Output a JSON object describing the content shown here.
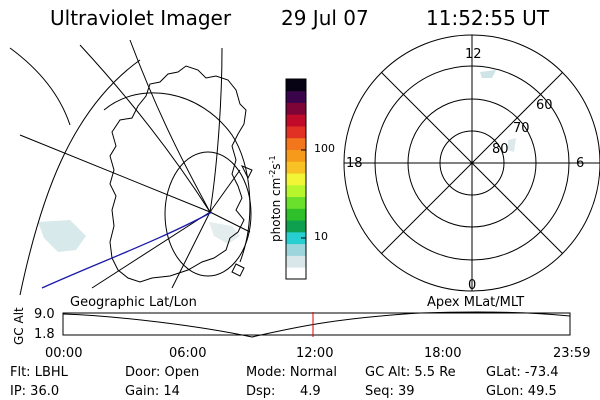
{
  "header": {
    "title": "Ultraviolet Imager",
    "date": "29 Jul 07",
    "time": "11:52:55 UT"
  },
  "colorbar": {
    "unit_label": "photon cm",
    "unit_exp1": "-2",
    "unit_s": "s",
    "unit_exp2": "-1",
    "ticks": [
      "100",
      "10"
    ],
    "colors": [
      "#ffffff",
      "#d9e6ea",
      "#9cd6dc",
      "#27cfd1",
      "#0ea04e",
      "#2fbf2a",
      "#6be02c",
      "#b7f52d",
      "#f2f436",
      "#f8c224",
      "#f59a1b",
      "#f3751c",
      "#e13024",
      "#bf0a29",
      "#7e0438",
      "#39044a",
      "#080314"
    ]
  },
  "polar_plot": {
    "hour_labels": [
      "12",
      "18",
      "6",
      "0"
    ],
    "lat_labels": [
      "60",
      "70",
      "80"
    ]
  },
  "map_labels": {
    "left": "Geographic Lat/Lon",
    "right": "Apex  MLat/MLT"
  },
  "altitude_plot": {
    "axis_title": "GC Alt",
    "y_ticks": [
      "9.0",
      "1.8"
    ],
    "x_ticks": [
      "00:00",
      "06:00",
      "12:00",
      "18:00",
      "23:59"
    ]
  },
  "info": {
    "filter": "Flt: LBHL",
    "door": "Door: Open",
    "mode": "Mode: Normal",
    "gc_alt": "GC Alt: 5.5 Re",
    "glat": "GLat: -73.4",
    "ip": "IP: 36.0",
    "gain": "Gain: 14",
    "dsp_label": "Dsp:",
    "dsp_value": "4.9",
    "seq": "Seq: 39",
    "glon": "GLon:  49.5"
  }
}
